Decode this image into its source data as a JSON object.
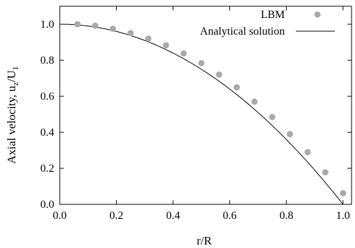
{
  "chart_data": {
    "type": "scatter",
    "xlabel": "r/R",
    "ylabel": "Axial velocity, u",
    "ylabel_sub1": "z",
    "ylabel_mid": "/U",
    "ylabel_sub2": "1",
    "xlim": [
      0.0,
      1.03
    ],
    "ylim": [
      0.0,
      1.1
    ],
    "xticks": [
      "0.0",
      "0.2",
      "0.4",
      "0.6",
      "0.8",
      "1.0"
    ],
    "yticks": [
      "0.0",
      "0.2",
      "0.4",
      "0.6",
      "0.8",
      "1.0"
    ],
    "grid": false,
    "legend_position": "top-right",
    "series": [
      {
        "name": "LBM",
        "style": "points",
        "color": "#a9a9a9",
        "x": [
          0.0625,
          0.125,
          0.1875,
          0.25,
          0.3125,
          0.375,
          0.4375,
          0.5,
          0.5625,
          0.625,
          0.6875,
          0.75,
          0.8125,
          0.875,
          0.9375,
          1.0
        ],
        "y": [
          1.0,
          0.992,
          0.975,
          0.951,
          0.92,
          0.883,
          0.838,
          0.784,
          0.72,
          0.65,
          0.57,
          0.485,
          0.39,
          0.29,
          0.178,
          0.062
        ]
      },
      {
        "name": "Analytical solution",
        "style": "line",
        "color": "#000000",
        "function": "1 - x^2",
        "x_range": [
          0.0,
          1.0
        ]
      }
    ]
  }
}
